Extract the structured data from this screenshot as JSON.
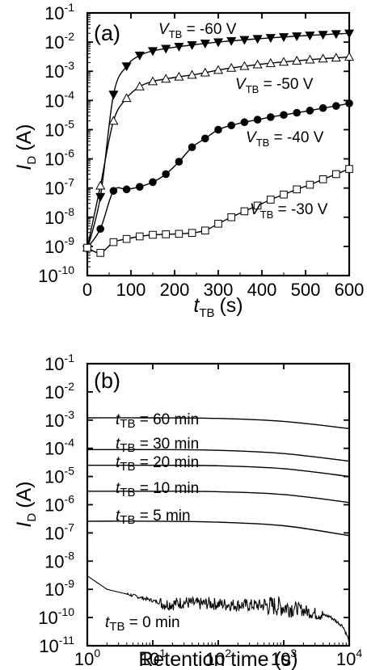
{
  "chart_data": [
    {
      "panel_label": "(a)",
      "type": "scatter",
      "xlabel": {
        "main": "t",
        "sub": "TB",
        "unit": "(s)"
      },
      "ylabel": {
        "main": "I",
        "sub": "D",
        "unit": "(A)"
      },
      "xlim": [
        0,
        600
      ],
      "ylim_exponents": [
        -10,
        -1
      ],
      "y_scale": "log",
      "x_ticks": [
        "0",
        "100",
        "200",
        "300",
        "400",
        "500",
        "600"
      ],
      "y_tick_exponents": [
        "-10",
        "-9",
        "-8",
        "-7",
        "-6",
        "-5",
        "-4",
        "-3",
        "-2",
        "-1"
      ],
      "series": [
        {
          "name": "V_TB = -60 V",
          "marker": "triangle-down-filled",
          "x": [
            0,
            30,
            60,
            90,
            120,
            150,
            180,
            210,
            240,
            270,
            300,
            330,
            360,
            390,
            420,
            450,
            480,
            510,
            540,
            570,
            600
          ],
          "y": [
            8e-10,
            5e-08,
            0.00016,
            0.0015,
            0.0035,
            0.005,
            0.006,
            0.007,
            0.008,
            0.009,
            0.01,
            0.011,
            0.012,
            0.013,
            0.014,
            0.015,
            0.016,
            0.017,
            0.018,
            0.019,
            0.02
          ]
        },
        {
          "name": "V_TB = -50 V",
          "marker": "triangle-up-open",
          "x": [
            0,
            30,
            60,
            90,
            120,
            150,
            180,
            210,
            240,
            270,
            300,
            330,
            360,
            390,
            420,
            450,
            480,
            510,
            540,
            570,
            600
          ],
          "y": [
            9e-10,
            1.2e-07,
            2e-05,
            0.00012,
            0.0003,
            0.00045,
            0.00055,
            0.00065,
            0.00075,
            0.0009,
            0.0011,
            0.0013,
            0.0015,
            0.0017,
            0.0019,
            0.0021,
            0.0023,
            0.0025,
            0.0027,
            0.0029,
            0.0031
          ]
        },
        {
          "name": "V_TB = -40 V",
          "marker": "circle-filled",
          "x": [
            0,
            30,
            60,
            90,
            120,
            150,
            180,
            210,
            240,
            270,
            300,
            330,
            360,
            390,
            420,
            450,
            480,
            510,
            540,
            570,
            600
          ],
          "y": [
            9e-10,
            4e-09,
            8e-08,
            9e-08,
            1.1e-07,
            1.6e-07,
            3e-07,
            8e-07,
            2.5e-06,
            5e-06,
            1e-05,
            1.4e-05,
            1.8e-05,
            2.2e-05,
            2.7e-05,
            3.2e-05,
            3.8e-05,
            4.5e-05,
            5.5e-05,
            6.5e-05,
            8e-05
          ]
        },
        {
          "name": "V_TB = -30 V",
          "marker": "square-open",
          "x": [
            0,
            30,
            60,
            90,
            120,
            150,
            180,
            210,
            240,
            270,
            300,
            330,
            360,
            390,
            420,
            450,
            480,
            510,
            540,
            570,
            600
          ],
          "y": [
            9e-10,
            6e-10,
            1.4e-09,
            1.8e-09,
            2.2e-09,
            2.5e-09,
            2.6e-09,
            2.7e-09,
            2.9e-09,
            3.5e-09,
            6e-09,
            1e-08,
            1.6e-08,
            2.5e-08,
            4e-08,
            6e-08,
            9e-08,
            1.3e-07,
            2e-07,
            3e-07,
            4.5e-07
          ]
        }
      ],
      "annotations": [
        {
          "main": "V",
          "sub": "TB",
          "rest": " = -60 V"
        },
        {
          "main": "V",
          "sub": "TB",
          "rest": " = -50 V"
        },
        {
          "main": "V",
          "sub": "TB",
          "rest": " = -40 V"
        },
        {
          "main": "V",
          "sub": "TB",
          "rest": " = -30 V"
        }
      ]
    },
    {
      "panel_label": "(b)",
      "type": "line",
      "xlabel": {
        "text": "Retention time (s)"
      },
      "ylabel": {
        "main": "I",
        "sub": "D",
        "unit": "(A)"
      },
      "x_scale": "log",
      "y_scale": "log",
      "xlim_exponents": [
        0,
        4
      ],
      "ylim_exponents": [
        -11,
        -1
      ],
      "x_tick_exponents": [
        "0",
        "1",
        "2",
        "3",
        "4"
      ],
      "y_tick_exponents": [
        "-11",
        "-10",
        "-9",
        "-8",
        "-7",
        "-6",
        "-5",
        "-4",
        "-3",
        "-2",
        "-1"
      ],
      "series": [
        {
          "label": "t_TB = 60 min",
          "x": [
            1,
            10,
            100,
            1000,
            10000
          ],
          "y": [
            0.0012,
            0.0012,
            0.00115,
            0.0009,
            0.0005
          ]
        },
        {
          "label": "t_TB = 30 min",
          "x": [
            1,
            10,
            100,
            1000,
            10000
          ],
          "y": [
            9e-05,
            9e-05,
            8.5e-05,
            6.5e-05,
            3.5e-05
          ]
        },
        {
          "label": "t_TB = 20 min",
          "x": [
            1,
            10,
            100,
            1000,
            10000
          ],
          "y": [
            2.5e-05,
            2.5e-05,
            2.4e-05,
            1.9e-05,
            1e-05
          ]
        },
        {
          "label": "t_TB = 10 min",
          "x": [
            1,
            10,
            100,
            1000,
            10000
          ],
          "y": [
            3e-06,
            3e-06,
            2.9e-06,
            2.3e-06,
            1.2e-06
          ]
        },
        {
          "label": "t_TB = 5 min",
          "x": [
            1,
            10,
            100,
            1000,
            10000
          ],
          "y": [
            2.6e-07,
            2.6e-07,
            2.4e-07,
            1.8e-07,
            8e-08
          ]
        },
        {
          "label": "t_TB = 0 min",
          "noisy": true,
          "x": [
            1,
            2,
            5,
            10,
            15,
            20,
            30,
            50,
            70,
            100,
            200,
            400,
            700,
            1000,
            1500,
            2000,
            3000,
            5000,
            8000,
            10000
          ],
          "y": [
            3e-09,
            1e-09,
            6e-10,
            4e-10,
            3e-10,
            3e-10,
            3.5e-10,
            3e-10,
            3.2e-10,
            3e-10,
            2.8e-10,
            2.7e-10,
            2.6e-10,
            2.4e-10,
            2.2e-10,
            1.8e-10,
            1.4e-10,
            1.1e-10,
            5e-11,
            1.5e-11
          ]
        }
      ],
      "annotations": [
        {
          "main": "t",
          "sub": "TB",
          "rest": " = 60 min"
        },
        {
          "main": "t",
          "sub": "TB",
          "rest": " = 30 min"
        },
        {
          "main": "t",
          "sub": "TB",
          "rest": " = 20 min"
        },
        {
          "main": "t",
          "sub": "TB",
          "rest": " = 10 min"
        },
        {
          "main": "t",
          "sub": "TB",
          "rest": " = 5 min"
        },
        {
          "main": "t",
          "sub": "TB",
          "rest": " = 0 min"
        }
      ]
    }
  ]
}
